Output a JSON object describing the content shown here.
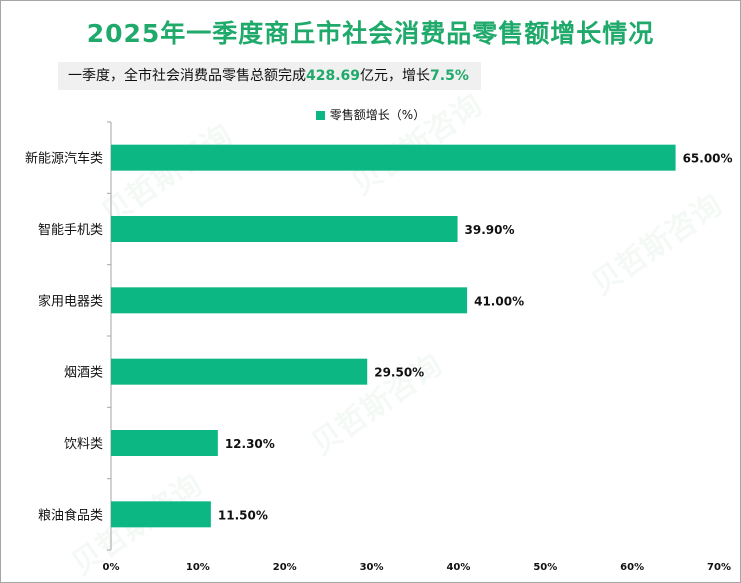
{
  "title": "2025年一季度商丘市社会消费品零售额增长情况",
  "subtitle": {
    "prefix": "一季度，全市社会消费品零售总额完成",
    "amount": "428.69",
    "middle": "亿元，增长",
    "growth": "7.5%"
  },
  "watermark": "贝哲斯咨询",
  "colors": {
    "bar": "#0db784",
    "title": "#1faa6b"
  },
  "chart_data": {
    "type": "bar",
    "orientation": "horizontal",
    "legend": "零售额增长（%）",
    "legend_position": "top",
    "categories": [
      "新能源汽车类",
      "智能手机类",
      "家用电器类",
      "烟酒类",
      "饮料类",
      "粮油食品类"
    ],
    "values": [
      65.0,
      39.9,
      41.0,
      29.5,
      12.3,
      11.5
    ],
    "value_labels": [
      "65.00%",
      "39.90%",
      "41.00%",
      "29.50%",
      "12.30%",
      "11.50%"
    ],
    "xlim": [
      0,
      70
    ],
    "xticks": [
      "0%",
      "10%",
      "20%",
      "30%",
      "40%",
      "50%",
      "60%",
      "70%"
    ],
    "grid": false
  }
}
